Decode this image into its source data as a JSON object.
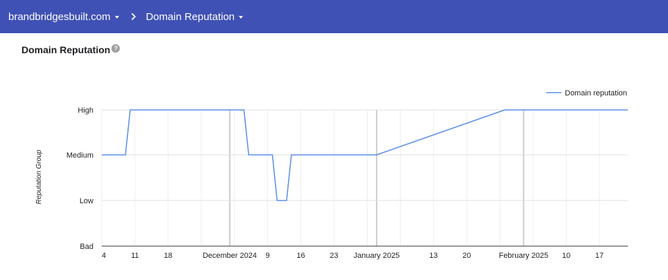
{
  "header": {
    "domain": "brandbridgesbuilt.com",
    "page": "Domain Reputation"
  },
  "card": {
    "title": "Domain Reputation",
    "help_icon": "help-circle-icon"
  },
  "colors": {
    "header_bg": "#3f51b5",
    "series": "#5b8ee6"
  },
  "chart_data": {
    "type": "line",
    "ylabel": "Reputation Group",
    "y_categories": [
      "Bad",
      "Low",
      "Medium",
      "High"
    ],
    "x_tick_labels": [
      "4",
      "11",
      "18",
      "December 2024",
      "9",
      "16",
      "23",
      "January 2025",
      "13",
      "20",
      "February 2025",
      "10",
      "17"
    ],
    "x_range": [
      "2024-11-04",
      "2025-02-23"
    ],
    "legend_position": "top-right",
    "series": [
      {
        "name": "Domain reputation",
        "points": [
          [
            "2024-11-04",
            "Medium"
          ],
          [
            "2024-11-09",
            "Medium"
          ],
          [
            "2024-11-10",
            "High"
          ],
          [
            "2024-12-04",
            "High"
          ],
          [
            "2024-12-05",
            "Medium"
          ],
          [
            "2024-12-10",
            "Medium"
          ],
          [
            "2024-12-11",
            "Low"
          ],
          [
            "2024-12-13",
            "Low"
          ],
          [
            "2024-12-14",
            "Medium"
          ],
          [
            "2025-01-01",
            "Medium"
          ],
          [
            "2025-01-28",
            "High"
          ],
          [
            "2025-02-23",
            "High"
          ]
        ]
      }
    ]
  }
}
